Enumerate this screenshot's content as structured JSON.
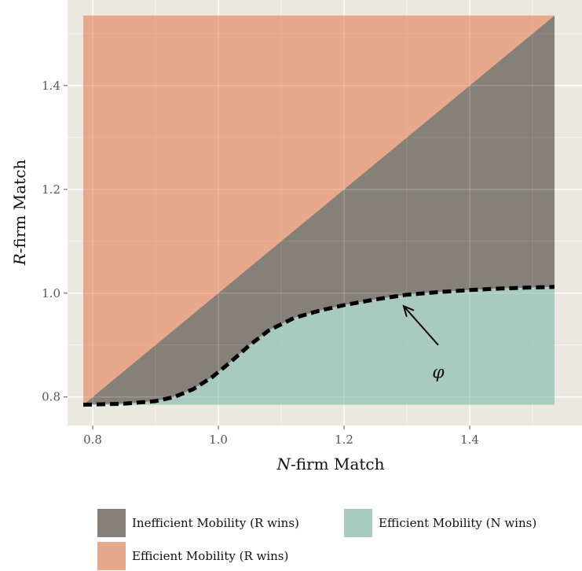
{
  "chart_data": {
    "type": "area",
    "xlabel_var": "N",
    "xlabel_rest": "-firm Match",
    "ylabel_var": "R",
    "ylabel_rest": "-firm Match",
    "xlim": [
      0.76,
      1.58
    ],
    "ylim": [
      0.745,
      1.565
    ],
    "x_ticks": [
      0.8,
      1.0,
      1.2,
      1.4
    ],
    "y_ticks": [
      0.8,
      1.0,
      1.2,
      1.4
    ],
    "x_tick_labels": [
      "0.8",
      "1.0",
      "1.2",
      "1.4"
    ],
    "y_tick_labels": [
      "0.8",
      "1.0",
      "1.2",
      "1.4"
    ],
    "x_range": [
      0.785,
      1.535
    ],
    "y_range": [
      0.785,
      1.535
    ],
    "phi_curve": {
      "x": [
        0.785,
        0.85,
        0.9,
        0.93,
        0.96,
        0.99,
        1.02,
        1.05,
        1.08,
        1.12,
        1.16,
        1.2,
        1.25,
        1.3,
        1.35,
        1.4,
        1.45,
        1.5,
        1.535
      ],
      "y": [
        0.785,
        0.787,
        0.792,
        0.8,
        0.815,
        0.838,
        0.868,
        0.9,
        0.928,
        0.952,
        0.966,
        0.977,
        0.988,
        0.997,
        1.002,
        1.006,
        1.009,
        1.011,
        1.012
      ]
    },
    "annotation": {
      "label": "φ",
      "label_x": 1.35,
      "label_y": 0.837,
      "arrow_from": [
        1.35,
        0.9
      ],
      "arrow_to": [
        1.295,
        0.975
      ]
    },
    "series": [
      {
        "name": "Inefficient Mobility (R wins)",
        "color": "#858179"
      },
      {
        "name": "Efficient Mobility (N wins)",
        "color": "#a8cabf"
      },
      {
        "name": "Efficient Mobility (R wins)",
        "color": "#e8a88b"
      }
    ],
    "panel_background": "#ebe8e0",
    "grid": true,
    "legend_position": "bottom"
  }
}
